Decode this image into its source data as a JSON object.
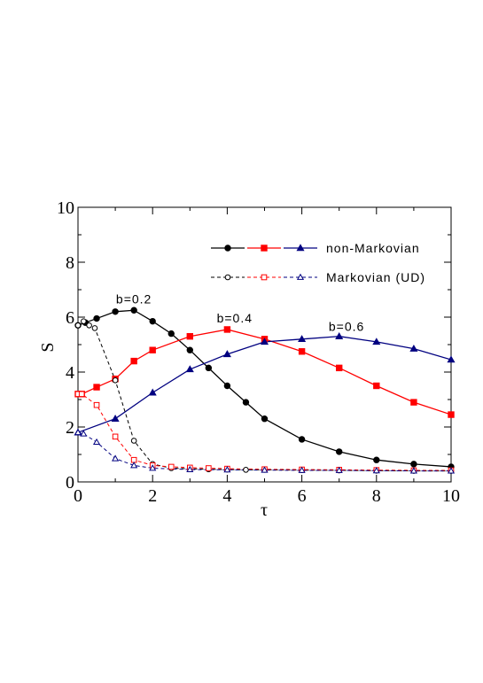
{
  "chart_data": {
    "type": "line",
    "xlabel": "τ",
    "ylabel": "S",
    "xlim": [
      0,
      10
    ],
    "ylim": [
      0,
      10
    ],
    "xticks": [
      0,
      2,
      4,
      6,
      8,
      10
    ],
    "yticks": [
      0,
      2,
      4,
      6,
      8,
      10
    ],
    "grid": false,
    "legend_position": "top-right",
    "legend": [
      {
        "label": "non-Markovian",
        "style": "solid-filled"
      },
      {
        "label": "Markovian (UD)",
        "style": "dashed-open"
      }
    ],
    "annotations": [
      {
        "text": "b=0.2",
        "x": 1.5,
        "y": 6.5
      },
      {
        "text": "b=0.4",
        "x": 4.2,
        "y": 5.8
      },
      {
        "text": "b=0.6",
        "x": 7.2,
        "y": 5.5
      }
    ],
    "series": [
      {
        "group": "non-Markovian",
        "b": "0.2",
        "color": "#000000",
        "marker": "circle",
        "filled": true,
        "dash": false,
        "x": [
          0,
          0.2,
          0.5,
          1,
          1.5,
          2,
          2.5,
          3,
          3.5,
          4,
          4.5,
          5,
          6,
          7,
          8,
          9,
          10
        ],
        "y": [
          5.7,
          5.8,
          5.95,
          6.2,
          6.25,
          5.85,
          5.4,
          4.8,
          4.15,
          3.5,
          2.9,
          2.3,
          1.55,
          1.1,
          0.8,
          0.65,
          0.55
        ]
      },
      {
        "group": "non-Markovian",
        "b": "0.4",
        "color": "#ff0000",
        "marker": "square",
        "filled": true,
        "dash": false,
        "x": [
          0,
          0.1,
          0.5,
          1,
          1.5,
          2,
          3,
          4,
          5,
          6,
          7,
          8,
          9,
          10
        ],
        "y": [
          3.2,
          3.2,
          3.45,
          3.75,
          4.4,
          4.8,
          5.3,
          5.55,
          5.2,
          4.75,
          4.15,
          3.5,
          2.9,
          2.45
        ]
      },
      {
        "group": "non-Markovian",
        "b": "0.6",
        "color": "#000080",
        "marker": "triangle",
        "filled": true,
        "dash": false,
        "x": [
          0,
          1,
          2,
          3,
          4,
          5,
          6,
          7,
          8,
          9,
          10
        ],
        "y": [
          1.8,
          2.3,
          3.25,
          4.1,
          4.65,
          5.1,
          5.2,
          5.3,
          5.1,
          4.85,
          4.45
        ]
      },
      {
        "group": "Markovian (UD)",
        "b": "0.2",
        "color": "#000000",
        "marker": "circle",
        "filled": false,
        "dash": true,
        "x": [
          0,
          0.15,
          0.3,
          0.45,
          1,
          1.5,
          2,
          2.5,
          3,
          3.5,
          4,
          4.5,
          5,
          6,
          7,
          8,
          9,
          10
        ],
        "y": [
          5.7,
          5.85,
          5.7,
          5.6,
          3.7,
          1.5,
          0.65,
          0.5,
          0.48,
          0.46,
          0.45,
          0.44,
          0.44,
          0.43,
          0.42,
          0.41,
          0.4,
          0.4
        ]
      },
      {
        "group": "Markovian (UD)",
        "b": "0.4",
        "color": "#ff0000",
        "marker": "square",
        "filled": false,
        "dash": true,
        "x": [
          0,
          0.1,
          0.5,
          1,
          1.5,
          2,
          2.5,
          3,
          3.5,
          4,
          5,
          6,
          7,
          8,
          9,
          10
        ],
        "y": [
          3.2,
          3.2,
          2.8,
          1.65,
          0.8,
          0.6,
          0.55,
          0.52,
          0.5,
          0.48,
          0.46,
          0.45,
          0.44,
          0.43,
          0.42,
          0.42
        ]
      },
      {
        "group": "Markovian (UD)",
        "b": "0.6",
        "color": "#000080",
        "marker": "triangle",
        "filled": false,
        "dash": true,
        "x": [
          0,
          0.15,
          0.5,
          1,
          1.5,
          2,
          3,
          4,
          5,
          6,
          7,
          8,
          9,
          10
        ],
        "y": [
          1.8,
          1.75,
          1.45,
          0.85,
          0.6,
          0.5,
          0.45,
          0.44,
          0.43,
          0.42,
          0.42,
          0.41,
          0.4,
          0.4
        ]
      }
    ]
  }
}
